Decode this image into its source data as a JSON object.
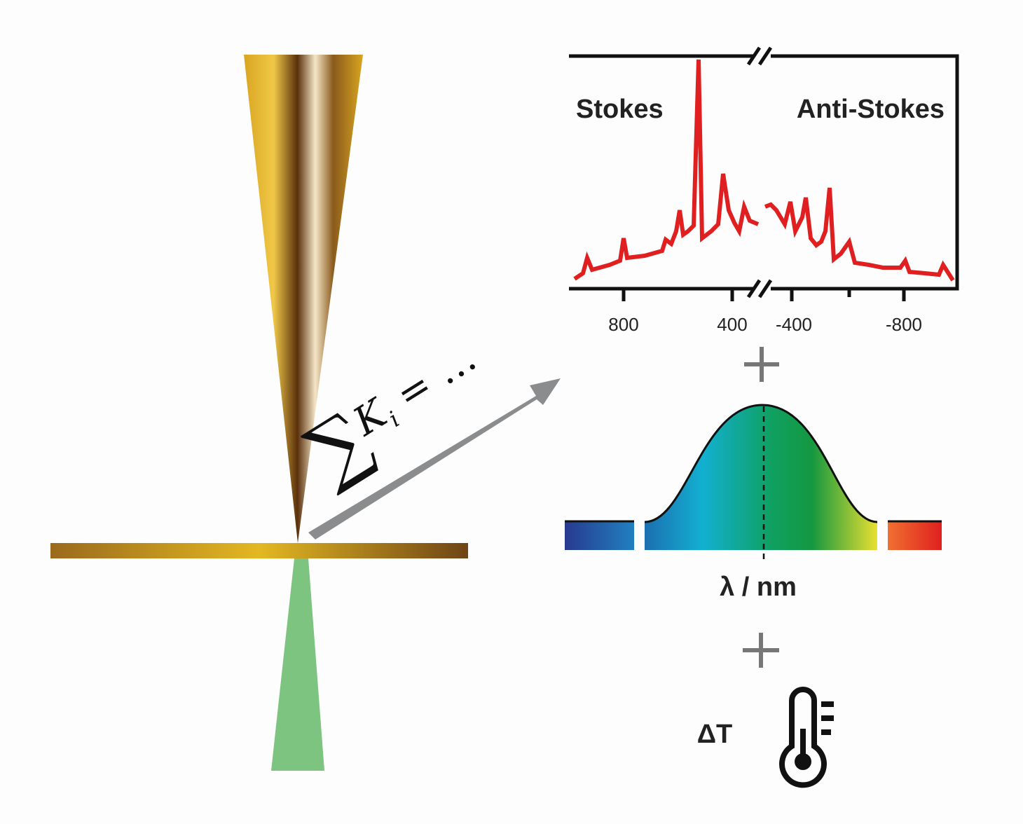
{
  "spectrum": {
    "left_label": "Stokes",
    "right_label": "Anti-Stokes",
    "ticks": [
      "800",
      "400",
      "-400",
      "-800"
    ]
  },
  "formula": {
    "sum": "∑",
    "term": "K",
    "index": "i",
    "rest": "= …"
  },
  "wavelength_axis": "λ / nm",
  "temperature": "ΔT"
}
